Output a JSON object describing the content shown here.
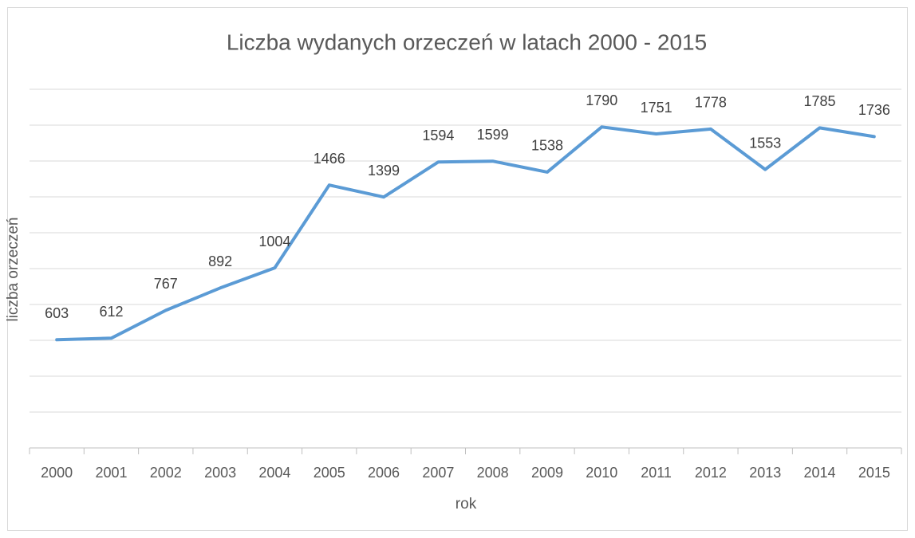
{
  "chart_data": {
    "type": "line",
    "title": "Liczba wydanych orzeczeń w latach 2000 - 2015",
    "x_label": "rok",
    "y_label": "liczba orzeczeń",
    "categories": [
      "2000",
      "2001",
      "2002",
      "2003",
      "2004",
      "2005",
      "2006",
      "2007",
      "2008",
      "2009",
      "2010",
      "2011",
      "2012",
      "2013",
      "2014",
      "2015"
    ],
    "series": [
      {
        "name": "Liczba orzeczeń",
        "color": "#5b9bd5",
        "values": [
          603,
          612,
          767,
          892,
          1004,
          1466,
          1399,
          1594,
          1599,
          1538,
          1790,
          1751,
          1778,
          1553,
          1785,
          1736
        ]
      }
    ],
    "ylim": [
      0,
      2000
    ],
    "yticks": [
      0,
      200,
      400,
      600,
      800,
      1000,
      1200,
      1400,
      1600,
      1800,
      2000
    ],
    "grid": true
  }
}
